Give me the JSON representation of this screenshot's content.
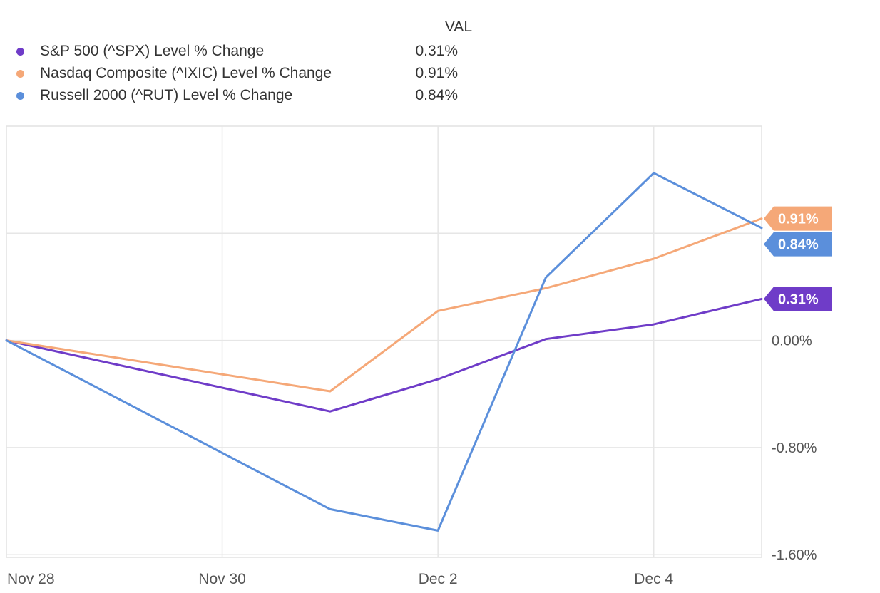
{
  "legend": {
    "header": "VAL",
    "items": [
      {
        "name": "S&P 500 (^SPX) Level % Change",
        "value": "0.31%",
        "color": "#6f3cc8"
      },
      {
        "name": "Nasdaq Composite (^IXIC) Level % Change",
        "value": "0.91%",
        "color": "#f5a878"
      },
      {
        "name": "Russell 2000 (^RUT) Level % Change",
        "value": "0.84%",
        "color": "#5b8fdb"
      }
    ]
  },
  "chart_data": {
    "type": "line",
    "x": [
      "Nov 28",
      "Nov 29",
      "Nov 30",
      "Dec 1",
      "Dec 2",
      "Dec 3",
      "Dec 4",
      "Dec 5"
    ],
    "x_tick_labels": [
      "Nov 28",
      "Nov 30",
      "Dec 2",
      "Dec 4"
    ],
    "y_tick_labels": [
      "0.00%",
      "-0.80%",
      "-1.60%"
    ],
    "ylim": [
      -1.62,
      1.6
    ],
    "y_gridlines": [
      0.8,
      0,
      -0.8,
      -1.6
    ],
    "grid": true,
    "legend_position": "top-left",
    "series": [
      {
        "name": "S&P 500 (^SPX) Level % Change",
        "color": "#6f3cc8",
        "values": [
          0,
          null,
          null,
          -0.53,
          -0.29,
          0.01,
          0.12,
          0.31
        ],
        "end_label": "0.31%"
      },
      {
        "name": "Nasdaq Composite (^IXIC) Level % Change",
        "color": "#f5a878",
        "values": [
          0,
          null,
          null,
          -0.38,
          0.22,
          0.39,
          0.61,
          0.91
        ],
        "end_label": "0.91%"
      },
      {
        "name": "Russell 2000 (^RUT) Level % Change",
        "color": "#5b8fdb",
        "values": [
          0,
          null,
          null,
          -1.26,
          -1.42,
          0.47,
          1.25,
          0.84
        ],
        "end_label": "0.84%"
      }
    ]
  }
}
